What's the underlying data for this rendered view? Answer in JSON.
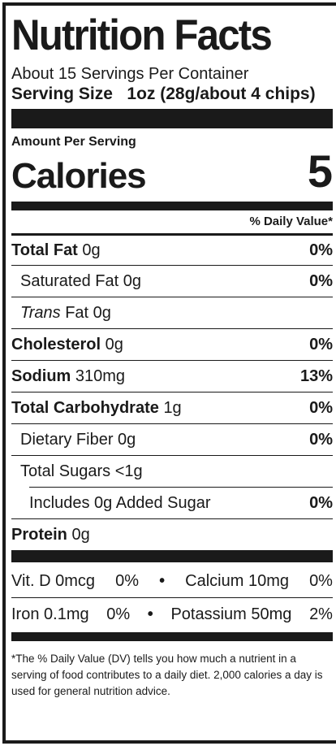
{
  "title": "Nutrition Facts",
  "servings_per_container": "About 15 Servings Per Container",
  "serving_size_label": "Serving Size",
  "serving_size_value": "1oz (28g/about 4 chips)",
  "amount_per_serving": "Amount Per Serving",
  "calories_label": "Calories",
  "calories_value": "5",
  "daily_value_header": "% Daily Value*",
  "nutrients": {
    "total_fat": {
      "label": "Total Fat",
      "amount": "0g",
      "dv": "0%"
    },
    "saturated_fat": {
      "label": "Saturated Fat",
      "amount": "0g",
      "dv": "0%"
    },
    "trans_fat": {
      "label_italic": "Trans",
      "label": "Fat",
      "amount": "0g"
    },
    "cholesterol": {
      "label": "Cholesterol",
      "amount": "0g",
      "dv": "0%"
    },
    "sodium": {
      "label": "Sodium",
      "amount": "310mg",
      "dv": "13%"
    },
    "total_carbohydrate": {
      "label": "Total Carbohydrate",
      "amount": "1g",
      "dv": "0%"
    },
    "dietary_fiber": {
      "label": "Dietary Fiber",
      "amount": "0g",
      "dv": "0%"
    },
    "total_sugars": {
      "label": "Total Sugars",
      "amount": "<1g"
    },
    "added_sugar": {
      "label": "Includes 0g Added Sugar",
      "dv": "0%"
    },
    "protein": {
      "label": "Protein",
      "amount": "0g"
    }
  },
  "vitamins": {
    "vit_d": {
      "label": "Vit. D 0mcg",
      "dv": "0%"
    },
    "calcium": {
      "label": "Calcium 10mg",
      "dv": "0%"
    },
    "iron": {
      "label": "Iron 0.1mg",
      "dv": "0%"
    },
    "potassium": {
      "label": "Potassium 50mg",
      "dv": "2%"
    },
    "separator": "•"
  },
  "footnote": "*The % Daily Value (DV) tells you how much a nutrient in a serving of food contributes to a daily diet. 2,000 calories a day is used for general nutrition advice."
}
